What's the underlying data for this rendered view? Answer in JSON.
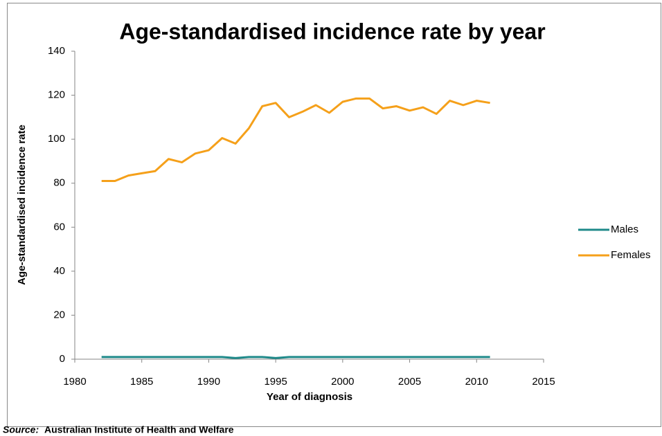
{
  "chart_data": {
    "type": "line",
    "title": "Age-standardised incidence rate by year",
    "x_label": "Year of diagnosis",
    "y_label": "Age-standardised incidence rate",
    "x": [
      1982,
      1983,
      1984,
      1985,
      1986,
      1987,
      1988,
      1989,
      1990,
      1991,
      1992,
      1993,
      1994,
      1995,
      1996,
      1997,
      1998,
      1999,
      2000,
      2001,
      2002,
      2003,
      2004,
      2005,
      2006,
      2007,
      2008,
      2009,
      2010,
      2011
    ],
    "series": [
      {
        "name": "Males",
        "color": "#1f8a8a",
        "values": [
          1,
          1,
          1,
          1,
          1,
          1,
          1,
          1,
          1,
          1,
          0.5,
          1,
          1,
          0.5,
          1,
          1,
          1,
          1,
          1,
          1,
          1,
          1,
          1,
          1,
          1,
          1,
          1,
          1,
          1,
          1
        ]
      },
      {
        "name": "Females",
        "color": "#f5a01a",
        "values": [
          81,
          81,
          83.5,
          84.5,
          85.5,
          91,
          89.5,
          93.5,
          95,
          100.5,
          98,
          105,
          115,
          116.5,
          110,
          112.5,
          115.5,
          112,
          117,
          118.5,
          118.5,
          114,
          115,
          113,
          114.5,
          111.5,
          117.5,
          115.5,
          117.5,
          116.5
        ]
      }
    ],
    "xlim": [
      1980,
      2015
    ],
    "xticks": [
      1980,
      1985,
      1990,
      1995,
      2000,
      2005,
      2010,
      2015
    ],
    "ylim": [
      0,
      140
    ],
    "yticks": [
      0,
      20,
      40,
      60,
      80,
      100,
      120,
      140
    ],
    "grid": false,
    "legend": "right",
    "source_label": "Source:",
    "source": "Australian Institute of Health and Welfare"
  }
}
